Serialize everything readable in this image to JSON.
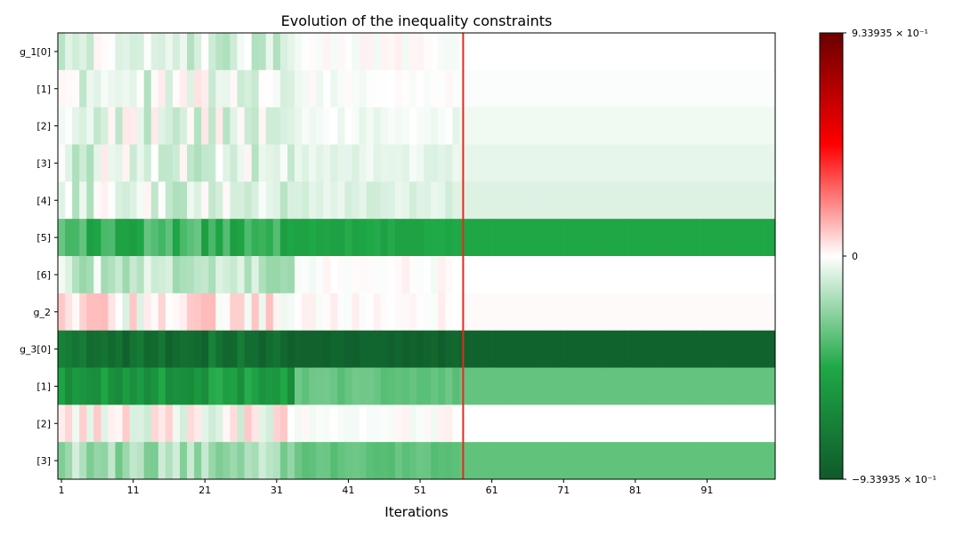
{
  "chart_data": {
    "type": "heatmap",
    "title": "Evolution of the inequality constraints",
    "xlabel": "Iterations",
    "ylabel": "",
    "row_labels": [
      "g_1[0]",
      "[1]",
      "[2]",
      "[3]",
      "[4]",
      "[5]",
      "[6]",
      "g_2",
      "g_3[0]",
      "[1]",
      "[2]",
      "[3]"
    ],
    "x_tick_labels": [
      "1",
      "11",
      "21",
      "31",
      "41",
      "51",
      "61",
      "71",
      "81",
      "91"
    ],
    "x_ticks": [
      1,
      11,
      21,
      31,
      41,
      51,
      61,
      71,
      81,
      91
    ],
    "x_range": [
      1,
      100
    ],
    "marker_line": {
      "iteration": 57,
      "color": "#e8291f"
    },
    "colorbar": {
      "min": -0.933935,
      "max": 0.933935,
      "tick_labels": [
        "9.33935 × 10⁻¹",
        "0",
        "−9.33935 × 10⁻¹"
      ],
      "tick_values": [
        0.933935,
        0,
        -0.933935
      ],
      "colors": [
        "#0f5a2a",
        "#1fa846",
        "#ffffff",
        "#ff0000",
        "#6b0000"
      ]
    },
    "row_final_values": [
      0.0,
      -0.01,
      -0.03,
      -0.05,
      -0.07,
      -0.48,
      0.0,
      0.01,
      -0.88,
      -0.32,
      0.0,
      -0.33
    ],
    "row_early_values": [
      -0.06,
      -0.05,
      -0.06,
      -0.07,
      -0.08,
      -0.42,
      -0.12,
      0.03,
      -0.8,
      -0.55,
      0.0,
      -0.2
    ]
  }
}
